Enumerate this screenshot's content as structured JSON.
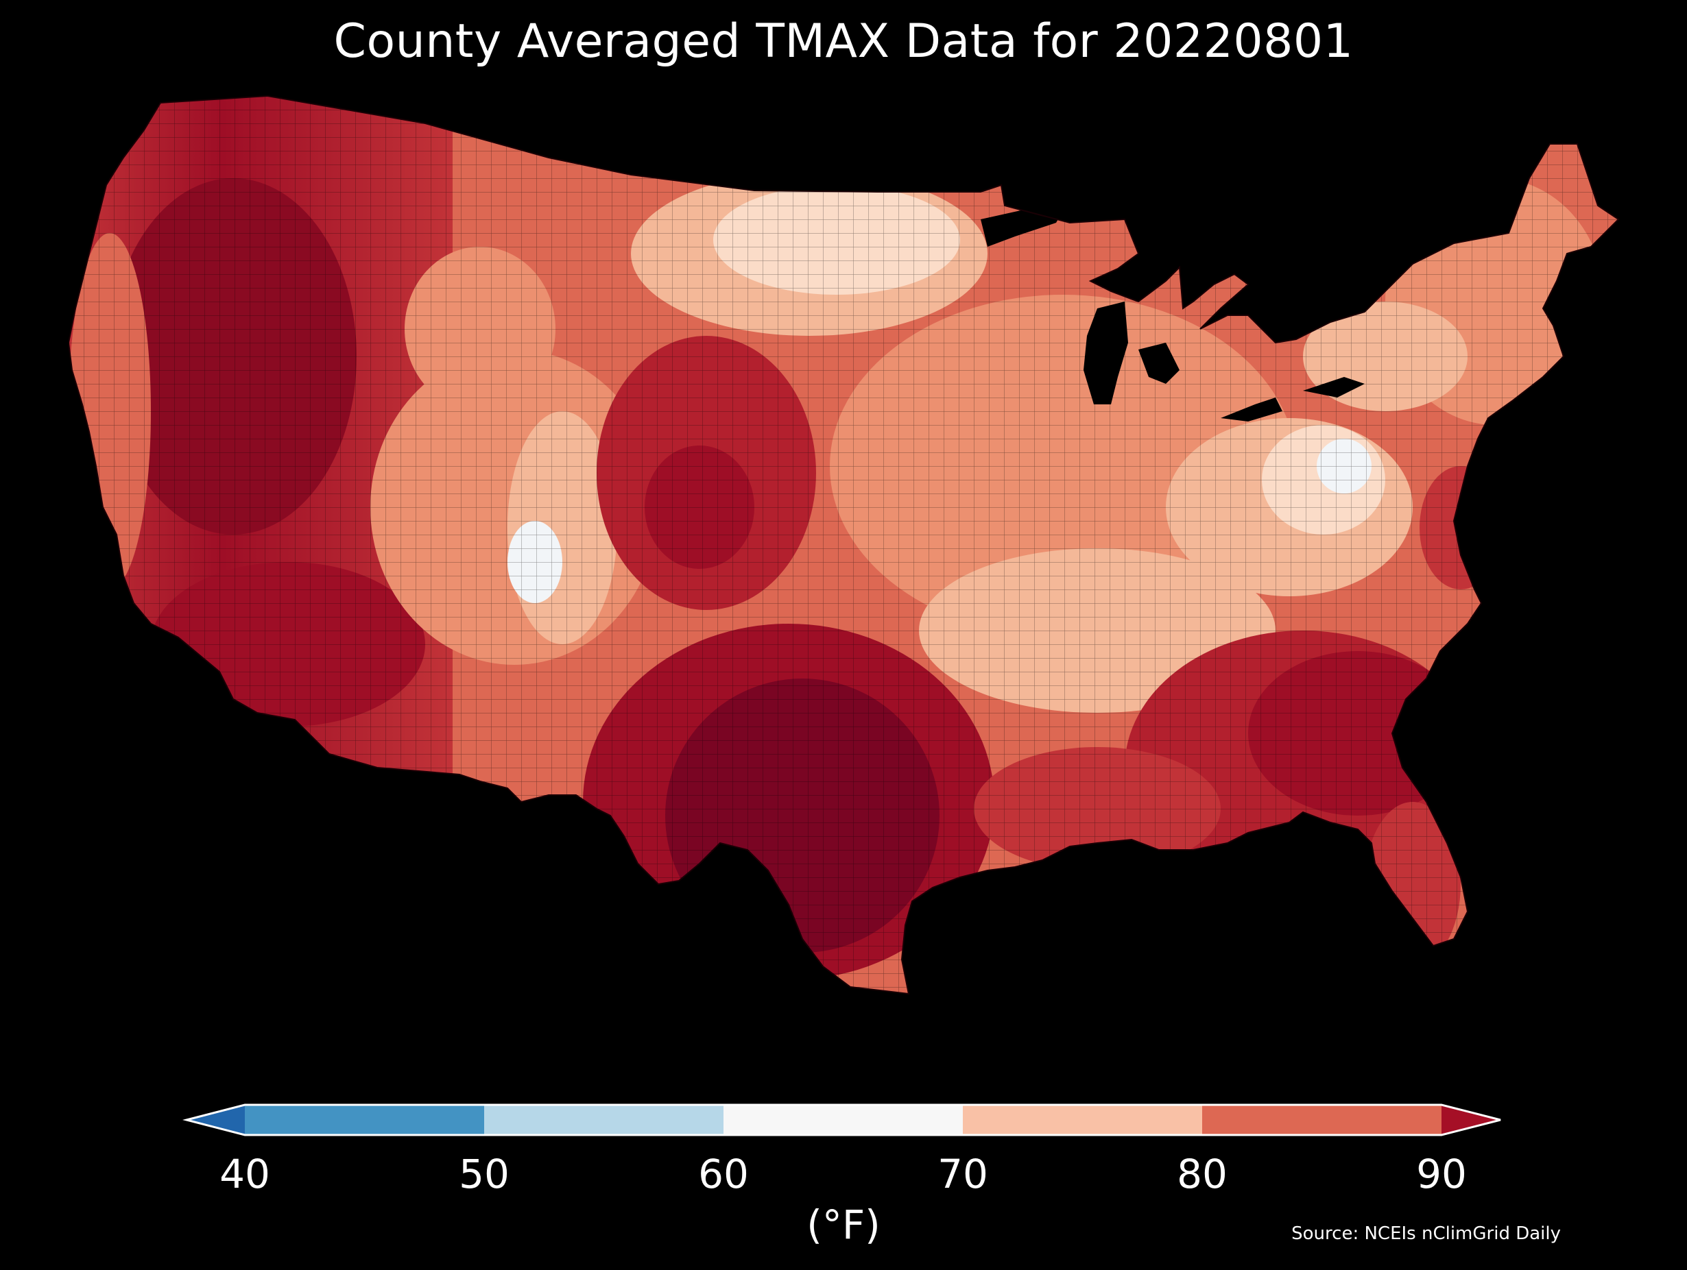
{
  "title": "County Averaged TMAX Data for 20220801",
  "colorbar": {
    "unit_label": "(°F)",
    "ticks": [
      "40",
      "50",
      "60",
      "70",
      "80",
      "90"
    ],
    "bins": [
      {
        "range": "<40",
        "color": "#2166ac"
      },
      {
        "range": "40-50",
        "color": "#4393c3"
      },
      {
        "range": "50-60",
        "color": "#b6d7e8"
      },
      {
        "range": "60-70",
        "color": "#f7f7f7"
      },
      {
        "range": "70-80",
        "color": "#f9c1a6"
      },
      {
        "range": "80-90",
        "color": "#dd6853"
      },
      {
        "range": ">90",
        "color": "#a50f26"
      }
    ]
  },
  "source": "Source: NCEIs nClimGrid Daily",
  "map": {
    "region": "Contiguous United States counties",
    "variable": "TMAX",
    "date": "20220801",
    "colors": {
      "hottest": "#67001f",
      "very_hot": "#9e0e26",
      "hot": "#c23338",
      "warm": "#dd6853",
      "mild_warm": "#ec9070",
      "mild": "#f4b898",
      "cool": "#fbdcc8",
      "coolest": "#f2f5f8"
    }
  }
}
